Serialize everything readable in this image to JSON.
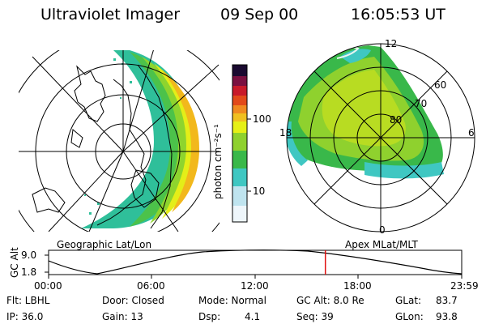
{
  "header": {
    "title": "Ultraviolet Imager",
    "date": "09 Sep 00",
    "time": "16:05:53 UT"
  },
  "colorbar": {
    "unit_label": "photon cm⁻²s⁻¹",
    "ticks": [
      "100",
      "10"
    ],
    "colors": [
      "#ffffff",
      "#cfe8f2",
      "#3fc7c2",
      "#39b84a",
      "#8fd12e",
      "#e6f016",
      "#f0c020",
      "#f08a20",
      "#e24a1a",
      "#c81a2a",
      "#7a1040",
      "#1a0a30"
    ]
  },
  "left_map": {
    "caption": "Geographic Lat/Lon"
  },
  "right_map": {
    "caption": "Apex MLat/MLT",
    "mlt_labels": {
      "top": "12",
      "left": "18",
      "right": "6",
      "bottom": "0"
    },
    "mlat_labels": [
      "60",
      "70",
      "80"
    ]
  },
  "altitude_plot": {
    "ylabel": "GC Alt",
    "yticks": [
      "9.0",
      "1.8"
    ],
    "xticks": [
      "00:00",
      "06:00",
      "12:00",
      "18:00",
      "23:59"
    ],
    "current_time_fraction": 0.67,
    "marker_color": "#e01010"
  },
  "footer": {
    "row1": {
      "flt": "Flt: LBHL",
      "door": "Door: Closed",
      "mode": "Mode: Normal",
      "gcalt": "GC Alt: 8.0 Re",
      "glat_label": "GLat:",
      "glat_value": "83.7"
    },
    "row2": {
      "ip": "IP: 36.0",
      "gain": "Gain: 13",
      "dsp_label": "Dsp:",
      "dsp_value": "4.1",
      "seq": "Seq: 39",
      "glon_label": "GLon:",
      "glon_value": "93.8"
    }
  }
}
